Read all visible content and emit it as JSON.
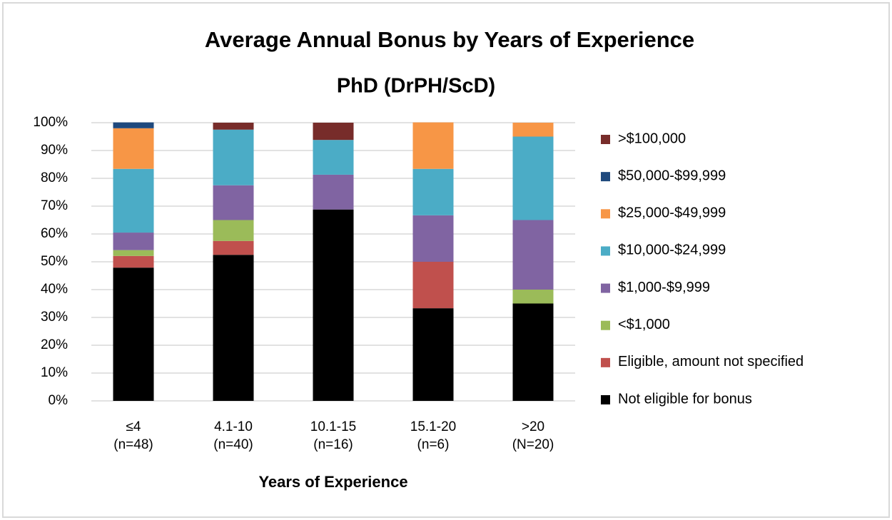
{
  "chart_data": {
    "type": "stacked_bar",
    "title": "Average Annual Bonus by Years of Experience",
    "subtitle": "PhD (DrPH/ScD)",
    "x_label": "Years of Experience",
    "categories": [
      "≤4\n(n=48)",
      "4.1-10\n(n=40)",
      "10.1-15\n(n=16)",
      "15.1-20\n(n=6)",
      ">20\n(N=20)"
    ],
    "series": [
      {
        "name": "Not eligible for bonus",
        "color": "#000000",
        "values": [
          47.9,
          52.5,
          68.8,
          33.3,
          35
        ]
      },
      {
        "name": "Eligible, amount not specified",
        "color": "#c0504d",
        "values": [
          4.2,
          5,
          0,
          16.7,
          0
        ]
      },
      {
        "name": "<$1,000",
        "color": "#9bbb59",
        "values": [
          2.1,
          7.5,
          0,
          0,
          5
        ]
      },
      {
        "name": "$1,000-$9,999",
        "color": "#8064a2",
        "values": [
          6.3,
          12.5,
          12.5,
          16.7,
          25
        ]
      },
      {
        "name": "$10,000-$24,999",
        "color": "#4bacc6",
        "values": [
          22.9,
          20,
          12.5,
          16.7,
          30
        ]
      },
      {
        "name": "$25,000-$49,999",
        "color": "#f79646",
        "values": [
          14.6,
          0,
          0,
          16.7,
          5
        ]
      },
      {
        "name": "$50,000-$99,999",
        "color": "#1f497d",
        "values": [
          2.1,
          0,
          0,
          0,
          0
        ]
      },
      {
        "name": ">$100,000",
        "color": "#772c2a",
        "values": [
          0,
          2.5,
          6.2,
          0,
          0
        ]
      }
    ],
    "ylim": [
      0,
      100
    ],
    "yticks": [
      {
        "value": 0,
        "label": "0%"
      },
      {
        "value": 10,
        "label": "10%"
      },
      {
        "value": 20,
        "label": "20%"
      },
      {
        "value": 30,
        "label": "30%"
      },
      {
        "value": 40,
        "label": "40%"
      },
      {
        "value": 50,
        "label": "50%"
      },
      {
        "value": 60,
        "label": "60%"
      },
      {
        "value": 70,
        "label": "70%"
      },
      {
        "value": 80,
        "label": "80%"
      },
      {
        "value": 90,
        "label": "90%"
      },
      {
        "value": 100,
        "label": "100%"
      }
    ],
    "grid": true,
    "legend": "right"
  }
}
